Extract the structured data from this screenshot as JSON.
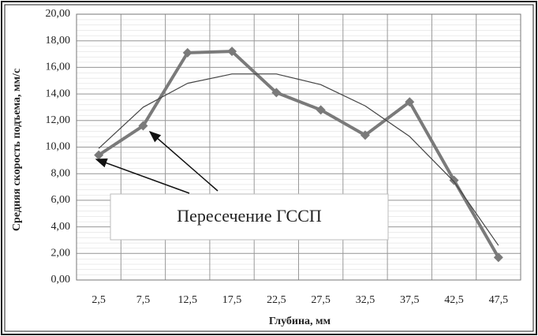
{
  "chart_data": {
    "type": "line",
    "y_label": "Средняя скорость подъема, мм/с",
    "x_label": "Глубина, мм",
    "categories": [
      "2,5",
      "7,5",
      "12,5",
      "17,5",
      "22,5",
      "27,5",
      "32,5",
      "37,5",
      "42,5",
      "47,5"
    ],
    "series": [
      {
        "color": "#7a7a7a",
        "values": [
          9.4,
          11.6,
          17.1,
          17.2,
          14.1,
          12.8,
          10.9,
          13.4,
          7.5,
          1.7
        ]
      },
      {
        "color": "#444444",
        "values": [
          9.9,
          13.0,
          14.8,
          15.5,
          15.5,
          14.7,
          13.1,
          10.8,
          7.4,
          2.6
        ]
      }
    ],
    "ylim": [
      0,
      20
    ],
    "yticks": [
      {
        "value": 0,
        "label": "0,00"
      },
      {
        "value": 2,
        "label": "2,00"
      },
      {
        "value": 4,
        "label": "4,00"
      },
      {
        "value": 6,
        "label": "6,00"
      },
      {
        "value": 8,
        "label": "8,00"
      },
      {
        "value": 10,
        "label": "10,00"
      },
      {
        "value": 12,
        "label": "12,00"
      },
      {
        "value": 14,
        "label": "14,00"
      },
      {
        "value": 16,
        "label": "16,00"
      },
      {
        "value": 18,
        "label": "18,00"
      },
      {
        "value": 20,
        "label": "20,00"
      }
    ],
    "grid": true,
    "annotation": "Пересечение ГССП"
  }
}
